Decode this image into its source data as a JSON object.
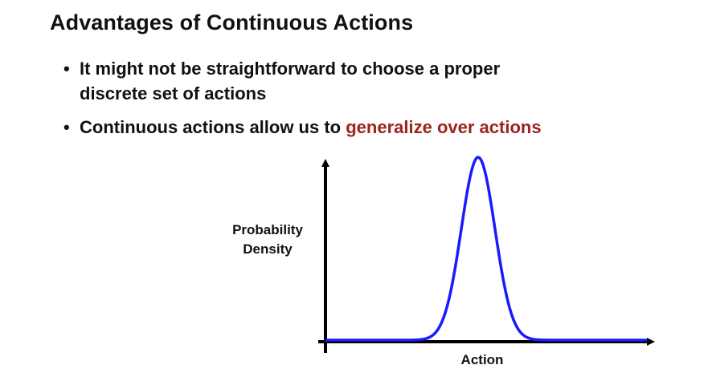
{
  "slide": {
    "title": "Advantages of Continuous Actions",
    "bullets": [
      {
        "parts": [
          "It might not be straightforward to choose a proper",
          "discrete set of actions"
        ]
      },
      {
        "text": "Continuous actions allow us to ",
        "highlight": "generalize over actions",
        "highlight_color": "#9b2421"
      }
    ]
  },
  "chart_data": {
    "type": "line",
    "xlabel": "Action",
    "ylabel": "Probability Density",
    "ylabel_lines": [
      "Probability",
      "Density"
    ],
    "curve": "gaussian",
    "series_color": "#1a1aff",
    "axis_color": "#000000"
  }
}
